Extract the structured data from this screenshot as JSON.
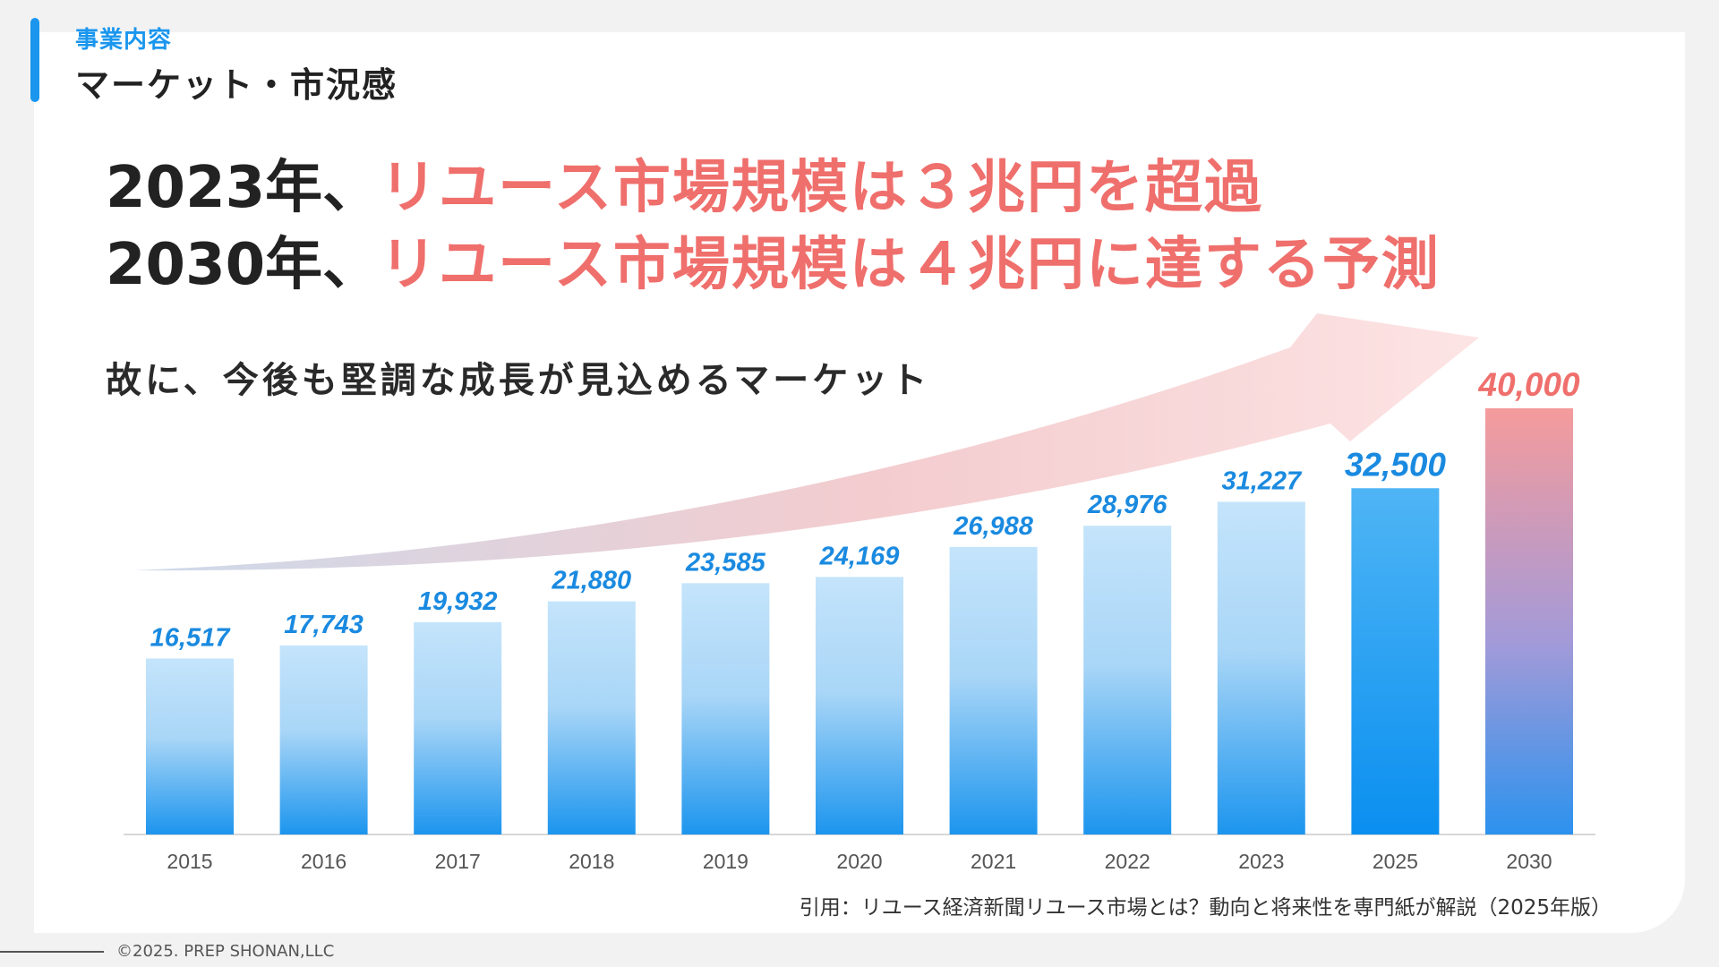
{
  "header": {
    "section_label": "事業内容",
    "title": "マーケット・市況感"
  },
  "headline": {
    "line1_prefix": "2023年、",
    "line1_highlight": "リユース市場規模は３兆円を超過",
    "line2_prefix": "2030年、",
    "line2_highlight": "リユース市場規模は４兆円に達する予測"
  },
  "subheadline": "故に、今後も堅調な成長が見込めるマーケット",
  "citation": "引用：リユース経済新聞リユース市場とは？動向と将来性を専門紙が解説（2025年版）",
  "footer": {
    "copyright": "©2025. PREP SHONAN,LLC"
  },
  "colors": {
    "accent": "#1a96ee",
    "highlight": "#ef6f6c",
    "bar_light": "#bfe2fb",
    "bar_dark": "#1c95ee",
    "label_blue": "#1a8ae0",
    "label_red": "#ef6f6c"
  },
  "chart_data": {
    "type": "bar",
    "categories": [
      "2015",
      "2016",
      "2017",
      "2018",
      "2019",
      "2020",
      "2021",
      "2022",
      "2023",
      "2025",
      "2030"
    ],
    "values": [
      16517,
      17743,
      19932,
      21880,
      23585,
      24169,
      26988,
      28976,
      31227,
      32500,
      40000
    ],
    "value_labels": [
      "16,517",
      "17,743",
      "19,932",
      "21,880",
      "23,585",
      "24,169",
      "26,988",
      "28,976",
      "31,227",
      "32,500",
      "40,000"
    ],
    "title": "",
    "xlabel": "",
    "ylabel": "",
    "ylim": [
      0,
      40000
    ],
    "grid": false,
    "annotations": [
      "growth-arrow"
    ]
  }
}
